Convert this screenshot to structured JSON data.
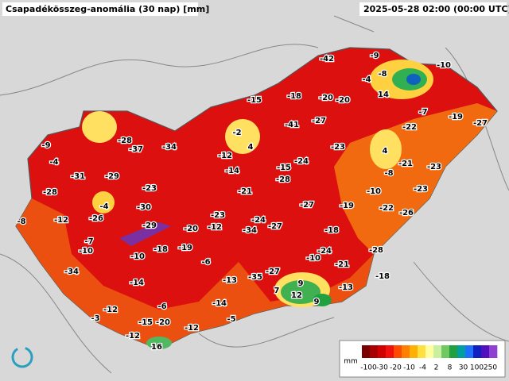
{
  "header": {
    "title": "Csapadékösszeg-anomália (30 nap) [mm]",
    "timestamp": "2025-05-28 02:00 (00:00 UTC)"
  },
  "stations": {
    "values": [
      -42,
      -9,
      -10,
      -4,
      -8,
      14,
      -7,
      -19,
      -27,
      -18,
      -20,
      -20,
      -15,
      -41,
      -27,
      -22,
      -2,
      4,
      -28,
      -37,
      -34,
      -9,
      -4,
      -12,
      -23,
      4,
      -21,
      -23,
      -14,
      -15,
      -24,
      -8,
      -31,
      -29,
      -28,
      -23,
      -21,
      -10,
      -23,
      -28,
      -4,
      -30,
      -23,
      -24,
      -27,
      -19,
      -22,
      -26,
      -8,
      -12,
      -26,
      -29,
      -20,
      -12,
      -34,
      -27,
      -18,
      -7,
      -10,
      -10,
      -18,
      -19,
      -24,
      -28,
      -6,
      -10,
      -21,
      -34,
      -27,
      -14,
      -13,
      -35,
      -18,
      9,
      7,
      12,
      -13,
      9,
      -6,
      -14,
      -12,
      -3,
      -15,
      -20,
      -5,
      -12,
      -12,
      16
    ]
  },
  "legend": {
    "unit": "mm",
    "labels": [
      -100,
      -30,
      -20,
      -10,
      -4,
      2,
      8,
      30,
      100,
      250
    ],
    "colors": [
      "#7a0000",
      "#a80000",
      "#d00000",
      "#f01010",
      "#ff4a00",
      "#ff8000",
      "#ffb000",
      "#ffe040",
      "#ffffa0",
      "#c8f0a0",
      "#70c860",
      "#20a040",
      "#00a0a0",
      "#2070ff",
      "#1020c0",
      "#5010c0",
      "#9040d0"
    ]
  }
}
